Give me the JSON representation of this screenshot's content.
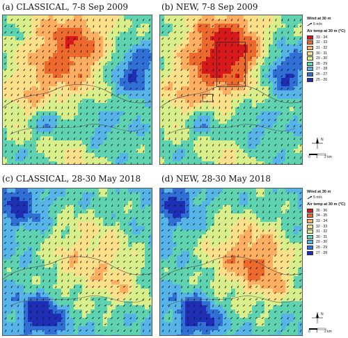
{
  "panels": [
    {
      "id": "a",
      "title": "(a) CLASSICAL, 7-8 Sep 2009",
      "scheme": "sep",
      "variant": "classical"
    },
    {
      "id": "b",
      "title": "(b) NEW, 7-8 Sep 2009",
      "scheme": "sep",
      "variant": "new"
    },
    {
      "id": "c",
      "title": "(c) CLASSICAL,  28-30 May 2018",
      "scheme": "may",
      "variant": "classical"
    },
    {
      "id": "d",
      "title": "(d) NEW,  28-30 May 2018",
      "scheme": "may",
      "variant": "new"
    }
  ],
  "legend_top": {
    "wind_title": "Wind at 30 m",
    "arrow_label": "5 m/s",
    "temp_title": "Air temp at 30 m (°C)",
    "classes": [
      {
        "label": "33 - 34",
        "color": "#d7191c"
      },
      {
        "label": "32 - 33",
        "color": "#ee6a2c"
      },
      {
        "label": "31 - 32",
        "color": "#fdae61"
      },
      {
        "label": "30 - 31",
        "color": "#fee08b"
      },
      {
        "label": "29 - 30",
        "color": "#d9ef8b"
      },
      {
        "label": "28 - 29",
        "color": "#5fd3b0"
      },
      {
        "label": "27 - 28",
        "color": "#56b4e9"
      },
      {
        "label": "26 - 27",
        "color": "#2f6fd6"
      },
      {
        "label": "25 - 26",
        "color": "#1f2fb5"
      }
    ]
  },
  "legend_bottom": {
    "wind_title": "Wind at 30 m",
    "arrow_label": "5 m/s",
    "temp_title": "Air temp at 30 m (°C)",
    "classes": [
      {
        "label": "35 - 36",
        "color": "#d7191c"
      },
      {
        "label": "34 - 35",
        "color": "#ee6a2c"
      },
      {
        "label": "33 - 34",
        "color": "#fdae61"
      },
      {
        "label": "32 - 33",
        "color": "#fee08b"
      },
      {
        "label": "31 - 32",
        "color": "#d9ef8b"
      },
      {
        "label": "30 - 31",
        "color": "#5fd3b0"
      },
      {
        "label": "29 - 30",
        "color": "#56b4e9"
      },
      {
        "label": "28 - 29",
        "color": "#2f6fd6"
      },
      {
        "label": "27 - 28",
        "color": "#1f2fb5"
      }
    ]
  },
  "north_label": "N",
  "scale": {
    "start": "0",
    "mid": "1",
    "end": "2 km"
  }
}
